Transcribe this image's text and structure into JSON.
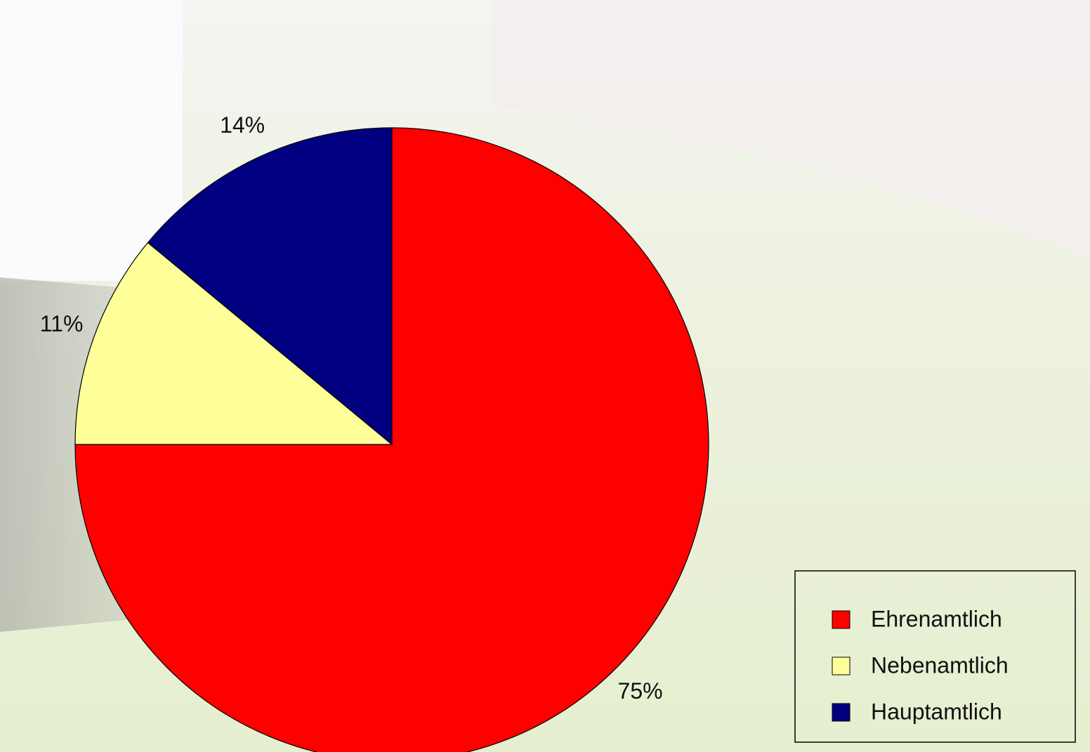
{
  "chart_data": {
    "type": "pie",
    "categories": [
      "Ehrenamtlich",
      "Nebenamtlich",
      "Hauptamtlich"
    ],
    "values": [
      75,
      11,
      14
    ],
    "value_labels": [
      "75%",
      "11%",
      "14%"
    ],
    "colors": [
      "#ff0000",
      "#ffff99",
      "#000080"
    ],
    "legend": "bottom-right"
  }
}
